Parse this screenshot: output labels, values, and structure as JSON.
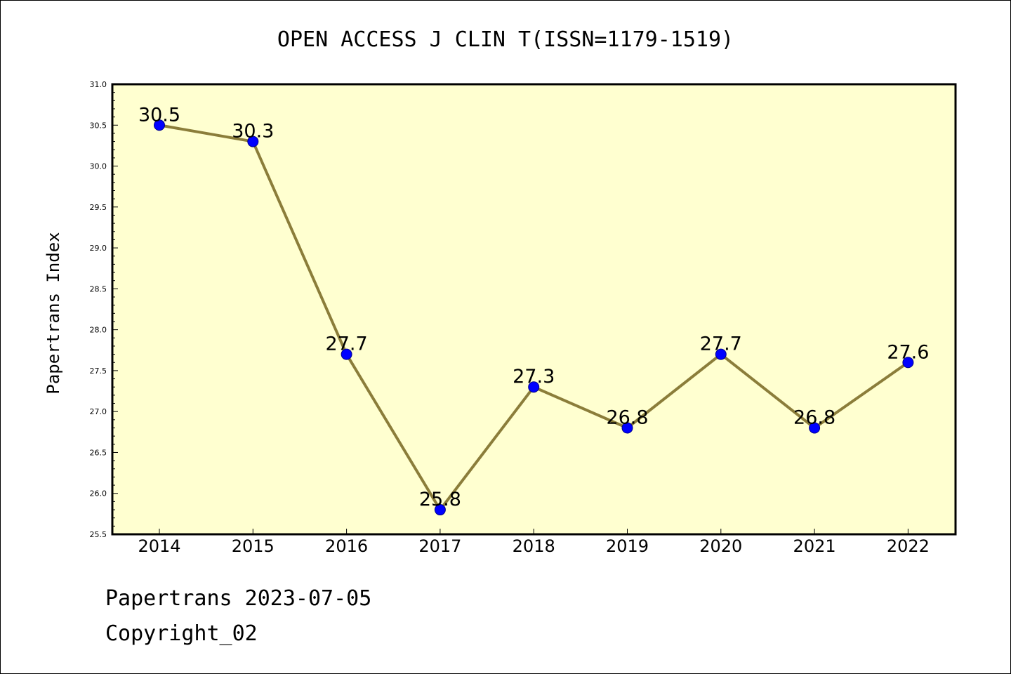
{
  "colors": {
    "background": "#ffffff",
    "plot_background": "#ffffd0",
    "line": "#8b7d3a",
    "marker": "#0000ff",
    "axis": "#000000"
  },
  "footer": {
    "source": "Papertrans 2023-07-05",
    "copyright": "Copyright_02"
  },
  "chart_data": {
    "type": "line",
    "title": "OPEN ACCESS J CLIN T(ISSN=1179-1519)",
    "xlabel": "",
    "ylabel": "Papertrans Index",
    "categories": [
      "2014",
      "2015",
      "2016",
      "2017",
      "2018",
      "2019",
      "2020",
      "2021",
      "2022"
    ],
    "series": [
      {
        "values": [
          30.5,
          30.3,
          27.7,
          25.8,
          27.3,
          26.8,
          27.7,
          26.8,
          27.6
        ]
      }
    ],
    "data_labels": [
      "30.5",
      "30.3",
      "27.7",
      "25.8",
      "27.3",
      "26.8",
      "27.7",
      "26.8",
      "27.6"
    ],
    "ylim": [
      25.5,
      31.0
    ],
    "y_ticks": [
      "25.5",
      "26.0",
      "26.5",
      "27.0",
      "27.5",
      "28.0",
      "28.5",
      "29.0",
      "29.5",
      "30.0",
      "30.5",
      "31.0"
    ],
    "grid": false,
    "legend": "none"
  }
}
